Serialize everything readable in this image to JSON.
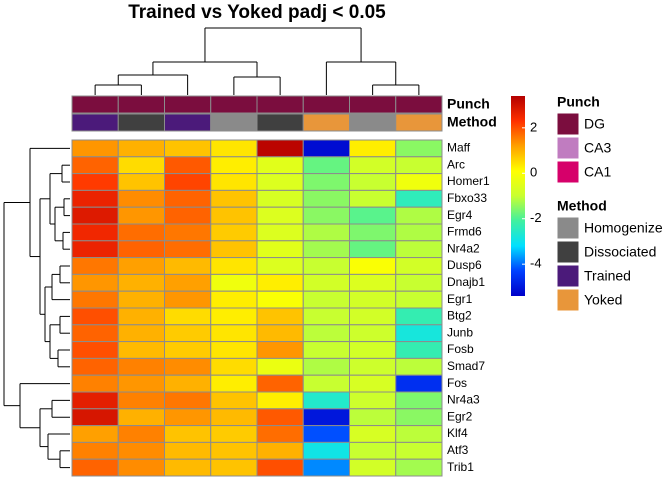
{
  "chart_data": {
    "type": "heatmap",
    "title": "Trained vs Yoked padj < 0.05",
    "rows": [
      "Maff",
      "Arc",
      "Homer1",
      "Fbxo33",
      "Egr4",
      "Frmd6",
      "Nr4a2",
      "Dusp6",
      "Dnajb1",
      "Egr1",
      "Btg2",
      "Junb",
      "Fosb",
      "Smad7",
      "Fos",
      "Nr4a3",
      "Egr2",
      "Klf4",
      "Atf3",
      "Trib1"
    ],
    "values": [
      [
        1.3,
        1.0,
        0.8,
        0.4,
        3.3,
        -5.2,
        0.3,
        -1.5
      ],
      [
        1.8,
        0.5,
        1.9,
        0.3,
        -0.5,
        -1.8,
        -0.8,
        -1.0
      ],
      [
        2.2,
        0.8,
        2.1,
        0.4,
        -0.6,
        -1.6,
        -1.0,
        -0.2
      ],
      [
        2.6,
        1.4,
        1.8,
        0.8,
        -0.7,
        -1.5,
        -1.0,
        -2.4
      ],
      [
        2.8,
        1.3,
        1.8,
        0.8,
        -0.6,
        -1.5,
        -1.9,
        -1.2
      ],
      [
        2.5,
        1.7,
        1.6,
        0.7,
        -0.6,
        -1.2,
        -1.6,
        -1.2
      ],
      [
        2.6,
        1.8,
        1.7,
        0.8,
        -0.5,
        -1.3,
        -1.8,
        -1.1
      ],
      [
        1.6,
        1.2,
        0.9,
        0.4,
        -0.6,
        -1.0,
        0.0,
        -0.8
      ],
      [
        1.3,
        1.0,
        1.2,
        -0.2,
        0.3,
        -0.8,
        -0.6,
        -1.0
      ],
      [
        1.6,
        1.0,
        1.3,
        0.3,
        0.0,
        -1.0,
        -0.8,
        -1.0
      ],
      [
        2.0,
        1.0,
        0.5,
        0.3,
        0.8,
        -1.0,
        -0.8,
        -2.3
      ],
      [
        1.8,
        1.0,
        0.7,
        0.4,
        0.9,
        -1.1,
        -0.9,
        -2.8
      ],
      [
        2.0,
        0.9,
        0.7,
        0.4,
        1.3,
        -1.0,
        -0.8,
        -2.3
      ],
      [
        1.8,
        1.5,
        1.4,
        0.5,
        -0.3,
        -1.2,
        -0.9,
        -1.1
      ],
      [
        1.5,
        1.3,
        1.0,
        0.3,
        1.8,
        -1.0,
        -0.7,
        -4.6
      ],
      [
        2.7,
        1.5,
        1.6,
        0.8,
        0.3,
        -2.6,
        -0.9,
        -1.6
      ],
      [
        2.9,
        1.0,
        1.3,
        0.9,
        1.9,
        -5.0,
        -1.1,
        -1.5
      ],
      [
        1.2,
        1.5,
        0.8,
        0.7,
        1.7,
        -4.2,
        -0.7,
        -1.1
      ],
      [
        1.5,
        1.4,
        0.9,
        0.8,
        1.0,
        -2.9,
        -1.0,
        -1.0
      ],
      [
        1.8,
        1.4,
        0.9,
        0.8,
        2.0,
        -3.8,
        -0.8,
        -1.3
      ]
    ],
    "zlim": [
      -5.4,
      3.4
    ],
    "zticks": [
      2,
      0,
      -2,
      -4
    ],
    "colorscale": [
      "#0000c8",
      "#0040ff",
      "#00e0ff",
      "#40f0a0",
      "#c8ff30",
      "#ffff00",
      "#ffa000",
      "#ff3000",
      "#b40000"
    ],
    "annotations": [
      {
        "name": "Punch",
        "levels": [
          "DG",
          "CA3",
          "CA1"
        ],
        "colors": [
          "#7b0d3e",
          "#c07cc0",
          "#d6006a"
        ],
        "values": [
          "DG",
          "DG",
          "DG",
          "DG",
          "DG",
          "DG",
          "DG",
          "DG"
        ]
      },
      {
        "name": "Method",
        "levels": [
          "Homogenize",
          "Dissociated",
          "Trained",
          "Yoked"
        ],
        "colors": [
          "#8a8a8a",
          "#404040",
          "#4b1a7a",
          "#e8963a"
        ],
        "values": [
          "Trained",
          "Dissociated",
          "Trained",
          "Homogenize",
          "Dissociated",
          "Yoked",
          "Homogenize",
          "Yoked"
        ]
      }
    ]
  }
}
